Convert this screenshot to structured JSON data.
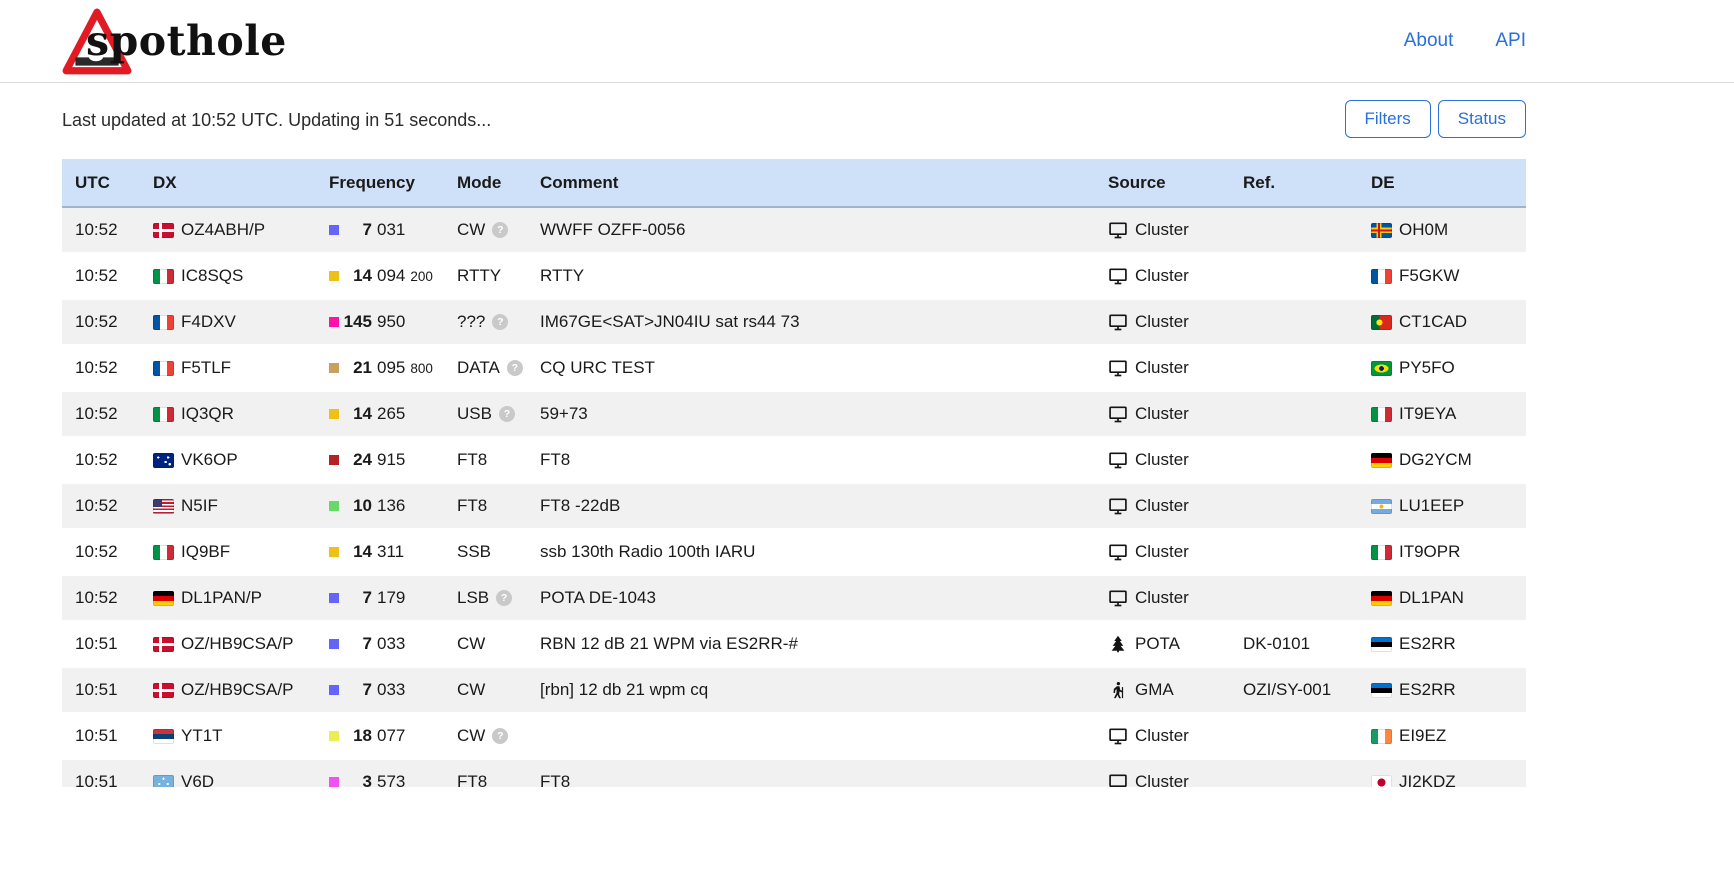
{
  "brand": {
    "name": "spothole"
  },
  "nav": {
    "about": "About",
    "api": "API"
  },
  "status_line": "Last updated at 10:52 UTC. Updating in 51 seconds...",
  "buttons": {
    "filters": "Filters",
    "status": "Status"
  },
  "colors": {
    "link_blue": "#2a6fdb",
    "table_header_bg": "#cfe1f8",
    "stripe_bg": "#f1f1f1"
  },
  "table": {
    "headers": [
      "UTC",
      "DX",
      "Frequency",
      "Mode",
      "Comment",
      "Source",
      "Ref.",
      "DE"
    ],
    "rows": [
      {
        "utc": "10:52",
        "dx": {
          "flag": "dk",
          "call": "OZ4ABH/P"
        },
        "freq": {
          "band_color": "#6464f8",
          "mhz": "7",
          "khz": "031",
          "hz": ""
        },
        "mode": {
          "label": "CW",
          "help": true
        },
        "comment": "WWFF OZFF-0056",
        "source": {
          "icon": "monitor",
          "label": "Cluster"
        },
        "ref": "",
        "de": {
          "flag": "ax",
          "call": "OH0M"
        }
      },
      {
        "utc": "10:52",
        "dx": {
          "flag": "it",
          "call": "IC8SQS"
        },
        "freq": {
          "band_color": "#eec117",
          "mhz": "14",
          "khz": "094",
          "hz": "200"
        },
        "mode": {
          "label": "RTTY",
          "help": false
        },
        "comment": "RTTY",
        "source": {
          "icon": "monitor",
          "label": "Cluster"
        },
        "ref": "",
        "de": {
          "flag": "fr",
          "call": "F5GKW"
        }
      },
      {
        "utc": "10:52",
        "dx": {
          "flag": "fr",
          "call": "F4DXV"
        },
        "freq": {
          "band_color": "#ff12a8",
          "mhz": "145",
          "khz": "950",
          "hz": ""
        },
        "mode": {
          "label": "???",
          "help": true
        },
        "comment": "IM67GE<SAT>JN04IU sat rs44 73",
        "source": {
          "icon": "monitor",
          "label": "Cluster"
        },
        "ref": "",
        "de": {
          "flag": "pt",
          "call": "CT1CAD"
        }
      },
      {
        "utc": "10:52",
        "dx": {
          "flag": "fr",
          "call": "F5TLF"
        },
        "freq": {
          "band_color": "#c8a15e",
          "mhz": "21",
          "khz": "095",
          "hz": "800"
        },
        "mode": {
          "label": "DATA",
          "help": true
        },
        "comment": "CQ URC TEST",
        "source": {
          "icon": "monitor",
          "label": "Cluster"
        },
        "ref": "",
        "de": {
          "flag": "br",
          "call": "PY5FO"
        }
      },
      {
        "utc": "10:52",
        "dx": {
          "flag": "it",
          "call": "IQ3QR"
        },
        "freq": {
          "band_color": "#eec117",
          "mhz": "14",
          "khz": "265",
          "hz": ""
        },
        "mode": {
          "label": "USB",
          "help": true
        },
        "comment": "59+73",
        "source": {
          "icon": "monitor",
          "label": "Cluster"
        },
        "ref": "",
        "de": {
          "flag": "it",
          "call": "IT9EYA"
        }
      },
      {
        "utc": "10:52",
        "dx": {
          "flag": "au",
          "call": "VK6OP"
        },
        "freq": {
          "band_color": "#b42225",
          "mhz": "24",
          "khz": "915",
          "hz": ""
        },
        "mode": {
          "label": "FT8",
          "help": false
        },
        "comment": "FT8",
        "source": {
          "icon": "monitor",
          "label": "Cluster"
        },
        "ref": "",
        "de": {
          "flag": "de",
          "call": "DG2YCM"
        }
      },
      {
        "utc": "10:52",
        "dx": {
          "flag": "us",
          "call": "N5IF"
        },
        "freq": {
          "band_color": "#66d966",
          "mhz": "10",
          "khz": "136",
          "hz": ""
        },
        "mode": {
          "label": "FT8",
          "help": false
        },
        "comment": "FT8 -22dB",
        "source": {
          "icon": "monitor",
          "label": "Cluster"
        },
        "ref": "",
        "de": {
          "flag": "ar",
          "call": "LU1EEP"
        }
      },
      {
        "utc": "10:52",
        "dx": {
          "flag": "it",
          "call": "IQ9BF"
        },
        "freq": {
          "band_color": "#eec117",
          "mhz": "14",
          "khz": "311",
          "hz": ""
        },
        "mode": {
          "label": "SSB",
          "help": false
        },
        "comment": "ssb 130th Radio 100th IARU",
        "source": {
          "icon": "monitor",
          "label": "Cluster"
        },
        "ref": "",
        "de": {
          "flag": "it",
          "call": "IT9OPR"
        }
      },
      {
        "utc": "10:52",
        "dx": {
          "flag": "de",
          "call": "DL1PAN/P"
        },
        "freq": {
          "band_color": "#6464f8",
          "mhz": "7",
          "khz": "179",
          "hz": ""
        },
        "mode": {
          "label": "LSB",
          "help": true
        },
        "comment": "POTA DE-1043",
        "source": {
          "icon": "monitor",
          "label": "Cluster"
        },
        "ref": "",
        "de": {
          "flag": "de",
          "call": "DL1PAN"
        }
      },
      {
        "utc": "10:51",
        "dx": {
          "flag": "dk",
          "call": "OZ/HB9CSA/P"
        },
        "freq": {
          "band_color": "#6464f8",
          "mhz": "7",
          "khz": "033",
          "hz": ""
        },
        "mode": {
          "label": "CW",
          "help": false
        },
        "comment": "RBN 12 dB 21 WPM via ES2RR-#",
        "source": {
          "icon": "tree",
          "label": "POTA"
        },
        "ref": "DK-0101",
        "de": {
          "flag": "ee",
          "call": "ES2RR"
        }
      },
      {
        "utc": "10:51",
        "dx": {
          "flag": "dk",
          "call": "OZ/HB9CSA/P"
        },
        "freq": {
          "band_color": "#6464f8",
          "mhz": "7",
          "khz": "033",
          "hz": ""
        },
        "mode": {
          "label": "CW",
          "help": false
        },
        "comment": "[rbn] 12 db 21 wpm cq",
        "source": {
          "icon": "hiker",
          "label": "GMA"
        },
        "ref": "OZI/SY-001",
        "de": {
          "flag": "ee",
          "call": "ES2RR"
        }
      },
      {
        "utc": "10:51",
        "dx": {
          "flag": "rs",
          "call": "YT1T"
        },
        "freq": {
          "band_color": "#e9ef53",
          "mhz": "18",
          "khz": "077",
          "hz": ""
        },
        "mode": {
          "label": "CW",
          "help": true
        },
        "comment": "",
        "source": {
          "icon": "monitor",
          "label": "Cluster"
        },
        "ref": "",
        "de": {
          "flag": "ie",
          "call": "EI9EZ"
        }
      },
      {
        "utc": "10:51",
        "dx": {
          "flag": "fm",
          "call": "V6D"
        },
        "freq": {
          "band_color": "#ef52ef",
          "mhz": "3",
          "khz": "573",
          "hz": ""
        },
        "mode": {
          "label": "FT8",
          "help": false
        },
        "comment": "FT8",
        "source": {
          "icon": "monitor",
          "label": "Cluster"
        },
        "ref": "",
        "de": {
          "flag": "jp",
          "call": "JI2KDZ"
        }
      }
    ]
  }
}
